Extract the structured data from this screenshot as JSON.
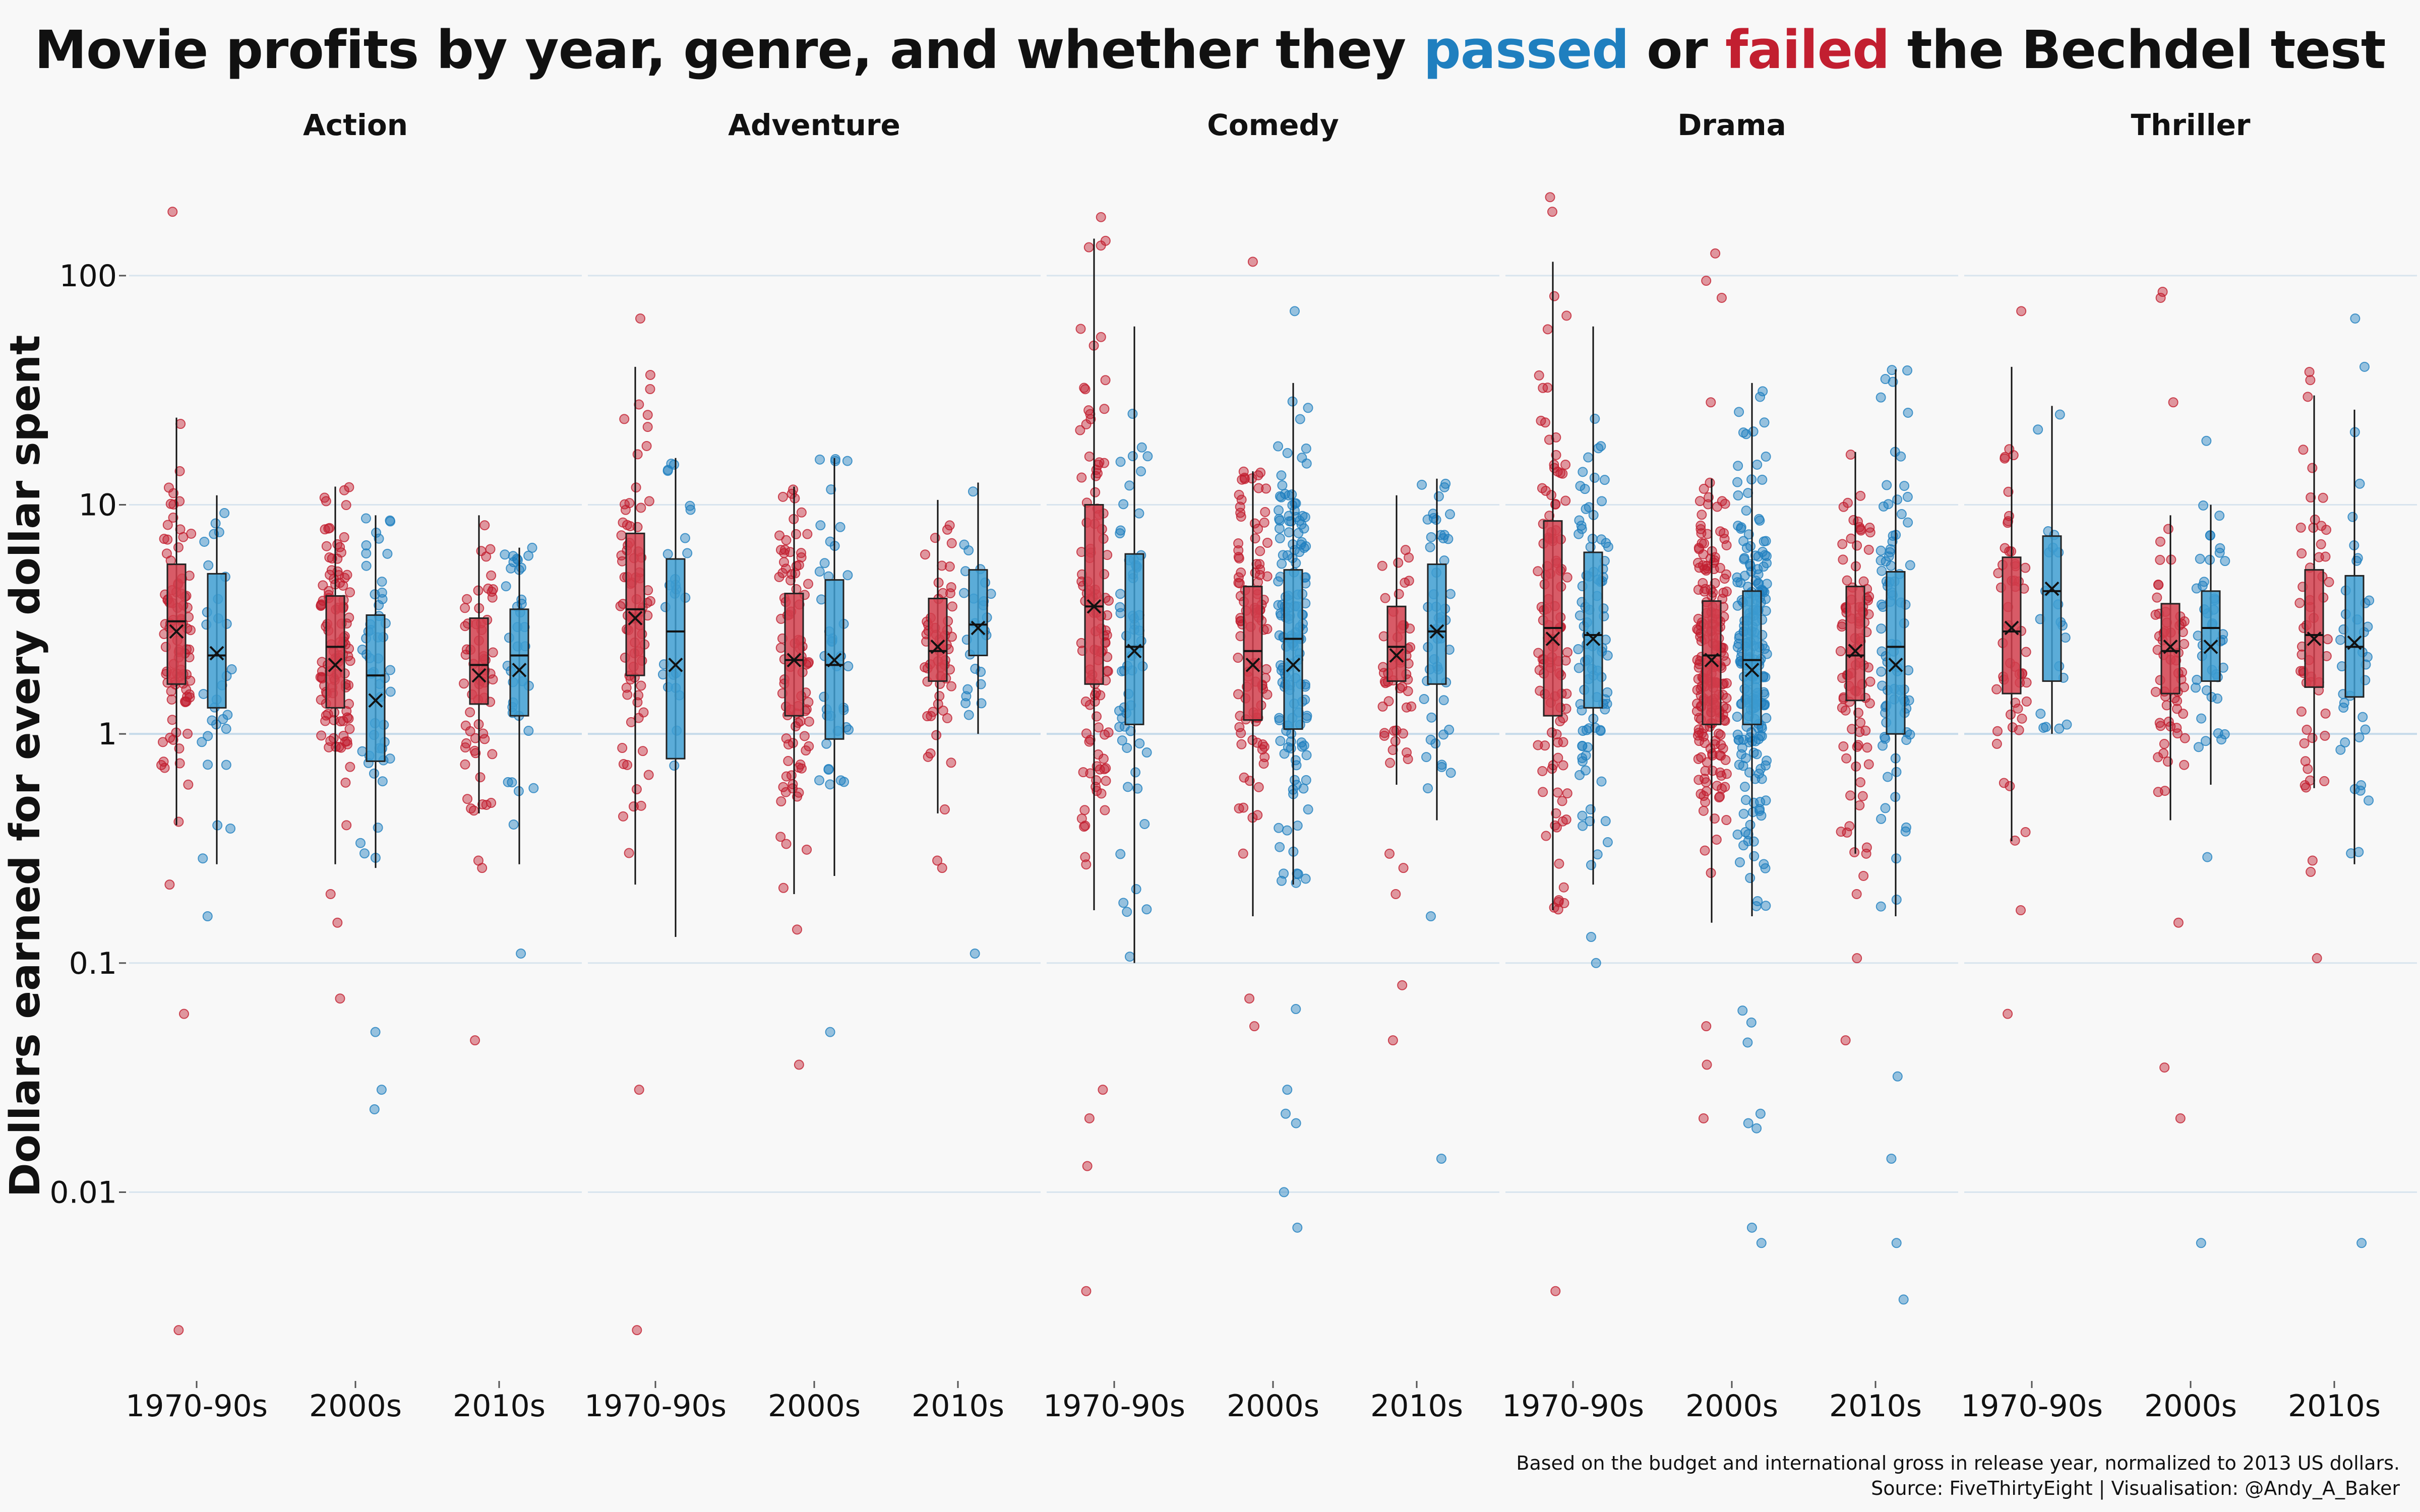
{
  "title": {
    "part1": "Movie profits by year, genre, and whether they ",
    "passed": "passed",
    "part2": " or ",
    "failed": "failed",
    "part3": " the Bechdel test"
  },
  "caption": {
    "line1": "Based on the budget and international gross in release year, normalized to 2013 US dollars.",
    "line2": "Source: FiveThirtyEight | Visualisation: @Andy_A_Baker"
  },
  "colors": {
    "failed": "#c21f30",
    "passed": "#1f7fbf",
    "failed_box": "#d2404e",
    "passed_box": "#3f9fd2",
    "gridline": "#d8e4ee",
    "background": "#f8f8f8"
  },
  "chart_data": {
    "type": "box-jitter",
    "ylabel": "Dollars earned for every dollar spent",
    "yscale": "log",
    "ylim": [
      0.0015,
      300
    ],
    "yticks": [
      100,
      10,
      1,
      0.1,
      0.01
    ],
    "ytick_labels": [
      "100",
      "10",
      "1",
      "0.1",
      "0.01"
    ],
    "categories": [
      "1970-90s",
      "2000s",
      "2010s"
    ],
    "series_keys": [
      "failed",
      "passed"
    ],
    "facets": [
      {
        "genre": "Action",
        "groups": [
          {
            "decade": "1970-90s",
            "outcome": "failed",
            "n": 90,
            "whisker_low": 0.4,
            "q1": 1.65,
            "median": 3.1,
            "q3": 5.5,
            "whisker_high": 24,
            "mean": 2.8,
            "outliers": [
              190,
              0.22,
              0.06,
              0.0025
            ]
          },
          {
            "decade": "1970-90s",
            "outcome": "passed",
            "n": 30,
            "whisker_low": 0.27,
            "q1": 1.3,
            "median": 2.2,
            "q3": 5.0,
            "whisker_high": 11,
            "mean": 2.25,
            "outliers": [
              0.16
            ]
          },
          {
            "decade": "2000s",
            "outcome": "failed",
            "n": 110,
            "whisker_low": 0.27,
            "q1": 1.3,
            "median": 2.4,
            "q3": 4.0,
            "whisker_high": 12,
            "mean": 2.0,
            "outliers": [
              0.2,
              0.15,
              0.07
            ]
          },
          {
            "decade": "2000s",
            "outcome": "passed",
            "n": 50,
            "whisker_low": 0.26,
            "q1": 0.76,
            "median": 1.8,
            "q3": 3.3,
            "whisker_high": 9,
            "mean": 1.4,
            "outliers": [
              0.05,
              0.028,
              0.023
            ]
          },
          {
            "decade": "2010s",
            "outcome": "failed",
            "n": 60,
            "whisker_low": 0.45,
            "q1": 1.35,
            "median": 2.0,
            "q3": 3.2,
            "whisker_high": 9,
            "mean": 1.8,
            "outliers": [
              0.28,
              0.26,
              0.046
            ]
          },
          {
            "decade": "2010s",
            "outcome": "passed",
            "n": 35,
            "whisker_low": 0.27,
            "q1": 1.2,
            "median": 2.2,
            "q3": 3.5,
            "whisker_high": 6.5,
            "mean": 1.9,
            "outliers": [
              0.11
            ]
          }
        ]
      },
      {
        "genre": "Adventure",
        "groups": [
          {
            "decade": "1970-90s",
            "outcome": "failed",
            "n": 80,
            "whisker_low": 0.22,
            "q1": 1.8,
            "median": 3.5,
            "q3": 7.5,
            "whisker_high": 40,
            "mean": 3.2,
            "outliers": [
              65,
              0.028,
              0.0025
            ]
          },
          {
            "decade": "1970-90s",
            "outcome": "passed",
            "n": 25,
            "whisker_low": 0.13,
            "q1": 0.78,
            "median": 2.8,
            "q3": 5.8,
            "whisker_high": 16,
            "mean": 2.0,
            "outliers": []
          },
          {
            "decade": "2000s",
            "outcome": "failed",
            "n": 90,
            "whisker_low": 0.2,
            "q1": 1.2,
            "median": 2.1,
            "q3": 4.1,
            "whisker_high": 12,
            "mean": 2.1,
            "outliers": [
              0.14,
              0.036
            ]
          },
          {
            "decade": "2000s",
            "outcome": "passed",
            "n": 40,
            "whisker_low": 0.24,
            "q1": 0.95,
            "median": 2.0,
            "q3": 4.7,
            "whisker_high": 16,
            "mean": 2.1,
            "outliers": [
              0.05
            ]
          },
          {
            "decade": "2010s",
            "outcome": "failed",
            "n": 55,
            "whisker_low": 0.45,
            "q1": 1.7,
            "median": 2.3,
            "q3": 3.9,
            "whisker_high": 10.5,
            "mean": 2.4,
            "outliers": [
              0.28,
              0.26
            ]
          },
          {
            "decade": "2010s",
            "outcome": "passed",
            "n": 25,
            "whisker_low": 1.0,
            "q1": 2.2,
            "median": 3.0,
            "q3": 5.2,
            "whisker_high": 12.5,
            "mean": 2.9,
            "outliers": [
              0.11
            ]
          }
        ]
      },
      {
        "genre": "Comedy",
        "groups": [
          {
            "decade": "1970-90s",
            "outcome": "failed",
            "n": 110,
            "whisker_low": 0.17,
            "q1": 1.65,
            "median": 3.6,
            "q3": 10,
            "whisker_high": 145,
            "mean": 3.6,
            "outliers": [
              180,
              0.028,
              0.021,
              0.013,
              0.0037
            ]
          },
          {
            "decade": "1970-90s",
            "outcome": "passed",
            "n": 60,
            "whisker_low": 0.1,
            "q1": 1.1,
            "median": 2.4,
            "q3": 6.1,
            "whisker_high": 60,
            "mean": 2.3,
            "outliers": []
          },
          {
            "decade": "2000s",
            "outcome": "failed",
            "n": 100,
            "whisker_low": 0.16,
            "q1": 1.15,
            "median": 2.3,
            "q3": 4.4,
            "whisker_high": 14,
            "mean": 2.0,
            "outliers": [
              115,
              0.07,
              0.053
            ]
          },
          {
            "decade": "2000s",
            "outcome": "passed",
            "n": 150,
            "whisker_low": 0.22,
            "q1": 1.05,
            "median": 2.6,
            "q3": 5.2,
            "whisker_high": 34,
            "mean": 2.0,
            "outliers": [
              70,
              0.063,
              0.028,
              0.022,
              0.02,
              0.01,
              0.007
            ]
          },
          {
            "decade": "2010s",
            "outcome": "failed",
            "n": 50,
            "whisker_low": 0.6,
            "q1": 1.7,
            "median": 2.4,
            "q3": 3.6,
            "whisker_high": 11,
            "mean": 2.2,
            "outliers": [
              0.3,
              0.26,
              0.2,
              0.08,
              0.046
            ]
          },
          {
            "decade": "2010s",
            "outcome": "passed",
            "n": 50,
            "whisker_low": 0.42,
            "q1": 1.65,
            "median": 2.8,
            "q3": 5.5,
            "whisker_high": 13,
            "mean": 2.8,
            "outliers": [
              0.16,
              0.014
            ]
          }
        ]
      },
      {
        "genre": "Drama",
        "groups": [
          {
            "decade": "1970-90s",
            "outcome": "failed",
            "n": 110,
            "whisker_low": 0.17,
            "q1": 1.2,
            "median": 2.9,
            "q3": 8.5,
            "whisker_high": 115,
            "mean": 2.6,
            "outliers": [
              220,
              190,
              0.0037
            ]
          },
          {
            "decade": "1970-90s",
            "outcome": "passed",
            "n": 90,
            "whisker_low": 0.22,
            "q1": 1.3,
            "median": 2.7,
            "q3": 6.2,
            "whisker_high": 60,
            "mean": 2.6,
            "outliers": [
              0.13,
              0.1
            ]
          },
          {
            "decade": "2000s",
            "outcome": "failed",
            "n": 200,
            "whisker_low": 0.15,
            "q1": 1.1,
            "median": 2.2,
            "q3": 3.8,
            "whisker_high": 13,
            "mean": 2.1,
            "outliers": [
              125,
              95,
              80,
              28,
              0.053,
              0.036,
              0.021
            ]
          },
          {
            "decade": "2000s",
            "outcome": "passed",
            "n": 210,
            "whisker_low": 0.16,
            "q1": 1.1,
            "median": 2.1,
            "q3": 4.2,
            "whisker_high": 34,
            "mean": 1.9,
            "outliers": [
              0.062,
              0.055,
              0.045,
              0.022,
              0.02,
              0.019,
              0.007,
              0.006
            ]
          },
          {
            "decade": "2010s",
            "outcome": "failed",
            "n": 90,
            "whisker_low": 0.3,
            "q1": 1.4,
            "median": 2.2,
            "q3": 4.4,
            "whisker_high": 17,
            "mean": 2.3,
            "outliers": [
              0.24,
              0.2,
              0.105,
              0.046
            ]
          },
          {
            "decade": "2010s",
            "outcome": "passed",
            "n": 85,
            "whisker_low": 0.16,
            "q1": 1.0,
            "median": 2.4,
            "q3": 5.1,
            "whisker_high": 39,
            "mean": 2.0,
            "outliers": [
              0.032,
              0.014,
              0.006,
              0.0034
            ]
          }
        ]
      },
      {
        "genre": "Thriller",
        "groups": [
          {
            "decade": "1970-90s",
            "outcome": "failed",
            "n": 50,
            "whisker_low": 0.34,
            "q1": 1.5,
            "median": 2.8,
            "q3": 5.9,
            "whisker_high": 40,
            "mean": 2.9,
            "outliers": [
              70,
              0.17,
              0.06
            ]
          },
          {
            "decade": "1970-90s",
            "outcome": "passed",
            "n": 20,
            "whisker_low": 1.0,
            "q1": 1.7,
            "median": 4.2,
            "q3": 7.3,
            "whisker_high": 27,
            "mean": 4.3,
            "outliers": []
          },
          {
            "decade": "2000s",
            "outcome": "failed",
            "n": 55,
            "whisker_low": 0.42,
            "q1": 1.5,
            "median": 2.3,
            "q3": 3.7,
            "whisker_high": 9,
            "mean": 2.4,
            "outliers": [
              85,
              80,
              28,
              0.15,
              0.035,
              0.021
            ]
          },
          {
            "decade": "2000s",
            "outcome": "passed",
            "n": 40,
            "whisker_low": 0.6,
            "q1": 1.7,
            "median": 2.9,
            "q3": 4.2,
            "whisker_high": 10,
            "mean": 2.4,
            "outliers": [
              19,
              0.29,
              0.006
            ]
          },
          {
            "decade": "2010s",
            "outcome": "failed",
            "n": 50,
            "whisker_low": 0.58,
            "q1": 1.6,
            "median": 2.7,
            "q3": 5.2,
            "whisker_high": 30,
            "mean": 2.6,
            "outliers": [
              38,
              35,
              0.28,
              0.25,
              0.105
            ]
          },
          {
            "decade": "2010s",
            "outcome": "passed",
            "n": 35,
            "whisker_low": 0.27,
            "q1": 1.45,
            "median": 2.4,
            "q3": 4.9,
            "whisker_high": 26,
            "mean": 2.5,
            "outliers": [
              65,
              40,
              0.006
            ]
          }
        ]
      }
    ]
  }
}
